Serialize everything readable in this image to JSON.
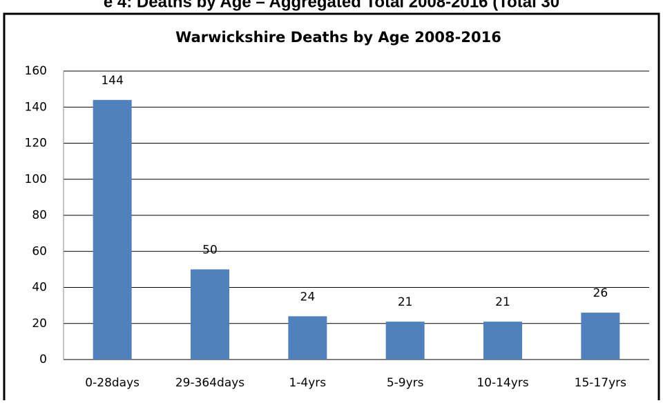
{
  "heading": "e 4: Deaths by Age – Aggregated Total 2008-2016 (Total 30",
  "chart_data": {
    "type": "bar",
    "title": "Warwickshire Deaths by Age 2008-2016",
    "categories": [
      "0-28days",
      "29-364days",
      "1-4yrs",
      "5-9yrs",
      "10-14yrs",
      "15-17yrs"
    ],
    "values": [
      144,
      50,
      24,
      21,
      21,
      26
    ],
    "color": "#4f81bd",
    "ylim": [
      0,
      160
    ],
    "yticks": [
      0,
      20,
      40,
      60,
      80,
      100,
      120,
      140,
      160
    ],
    "grid": true
  }
}
